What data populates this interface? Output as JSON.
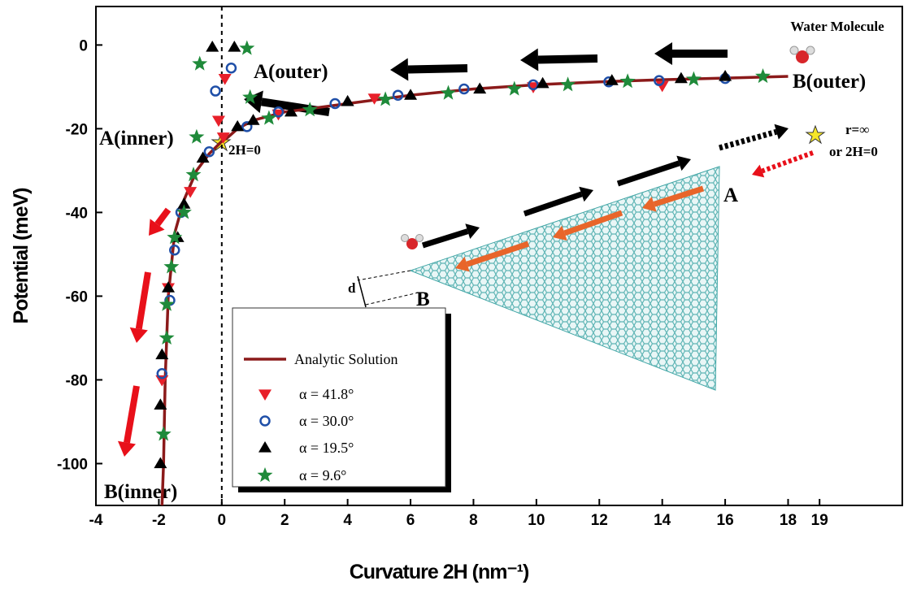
{
  "chart_data": {
    "type": "scatter",
    "xlabel": "Curvature 2H (nm⁻¹)",
    "ylabel": "Potential (meV)",
    "xlim": [
      -4,
      21.63
    ],
    "ylim": [
      -110,
      9.2
    ],
    "xticks": [
      -4,
      -2,
      0,
      2,
      4,
      6,
      8,
      10,
      12,
      14,
      16,
      18,
      19
    ],
    "yticks": [
      -100,
      -80,
      -60,
      -40,
      -20,
      0
    ],
    "vline": 0,
    "annotations": [
      "Water Molecule",
      "A(outer)",
      "B(outer)",
      "A(inner)",
      "B(inner)",
      "2H=0",
      "r=∞",
      "or 2H=0",
      "A",
      "B",
      "d"
    ],
    "series": [
      {
        "name": "Analytic Solution",
        "color": "#8b1a1a",
        "marker": "line",
        "x": [
          -1.9,
          -1.85,
          -1.8,
          -1.7,
          -1.5,
          -1.2,
          -0.8,
          -0.4,
          0,
          0.2,
          0.5,
          1,
          2,
          3,
          4,
          6,
          8,
          10,
          12,
          14,
          16,
          18
        ],
        "values": [
          -110,
          -100,
          -80,
          -60,
          -45,
          -37,
          -30,
          -26,
          -23,
          -22,
          -20,
          -18,
          -16,
          -15,
          -14,
          -12,
          -10.5,
          -9.5,
          -8.8,
          -8.3,
          -7.9,
          -7.5
        ]
      },
      {
        "name": "α = 41.8°",
        "color": "#e8202a",
        "marker": "triangle-down",
        "x": [
          0.1,
          -0.1,
          0.05,
          -1.0,
          -1.7,
          -1.9,
          1.8,
          4.85,
          9.9,
          14.0
        ],
        "values": [
          -8,
          -18,
          -22,
          -35,
          -58,
          -80,
          -16.5,
          -12.7,
          -10,
          -9.7
        ]
      },
      {
        "name": "α = 30.0°",
        "color": "#1f4fa8",
        "marker": "circle",
        "x": [
          0.3,
          -0.2,
          -0.4,
          -1.3,
          -1.5,
          -1.65,
          -1.9,
          0.8,
          1.8,
          3.6,
          5.6,
          7.7,
          9.9,
          12.3,
          13.9,
          16
        ],
        "values": [
          -5.5,
          -11,
          -25.5,
          -40,
          -49,
          -61,
          -78.5,
          -19.5,
          -16,
          -14,
          -12,
          -10.5,
          -9.5,
          -8.8,
          -8.5,
          -8
        ]
      },
      {
        "name": "α = 19.5°",
        "color": "#000000",
        "marker": "triangle-up",
        "x": [
          -0.3,
          0.4,
          0.5,
          1,
          2.2,
          4,
          6,
          8.2,
          10.2,
          12.4,
          14.6,
          16,
          -0.6,
          -1.2,
          -1.4,
          -1.7,
          -1.9,
          -1.95,
          -1.95
        ],
        "values": [
          -0.5,
          -0.5,
          -19.5,
          -18,
          -16,
          -13.5,
          -12,
          -10.5,
          -9.2,
          -8.5,
          -8,
          -7.5,
          -27,
          -38,
          -46,
          -58,
          -74,
          -86,
          -100
        ]
      },
      {
        "name": "α =  9.6°",
        "color": "#1f8a3a",
        "marker": "star",
        "x": [
          -0.7,
          0.8,
          0.9,
          -0.8,
          -0.9,
          -1.2,
          -1.5,
          -1.6,
          -1.75,
          -1.75,
          -1.85,
          1.5,
          2.8,
          5.2,
          7.2,
          9.3,
          11,
          12.9,
          15,
          17.2
        ],
        "values": [
          -4.5,
          -0.8,
          -12.5,
          -22,
          -31,
          -40,
          -46,
          -53,
          -62,
          -70,
          -93,
          -17.5,
          -15.5,
          -13,
          -11.5,
          -10.5,
          -9.5,
          -8.7,
          -8.2,
          -7.5
        ]
      }
    ]
  }
}
